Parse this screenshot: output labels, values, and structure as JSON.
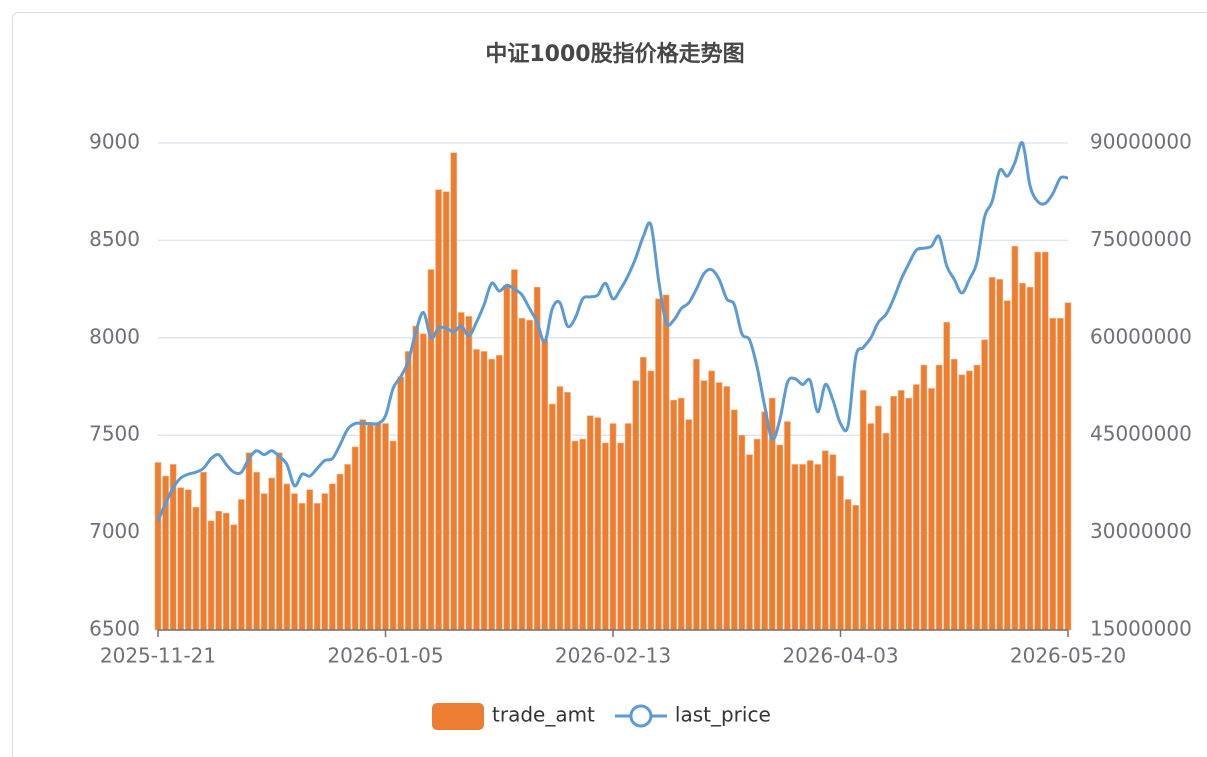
{
  "chart_data": {
    "type": "bar-line",
    "title": "中证1000股指价格走势图",
    "categories": [
      "2025-11-21",
      null,
      null,
      null,
      null,
      null,
      null,
      null,
      null,
      null,
      null,
      null,
      null,
      null,
      null,
      null,
      null,
      null,
      null,
      null,
      null,
      null,
      null,
      null,
      null,
      null,
      null,
      null,
      null,
      null,
      "2026-01-05",
      null,
      null,
      null,
      null,
      null,
      null,
      null,
      null,
      null,
      null,
      null,
      null,
      null,
      null,
      null,
      null,
      null,
      null,
      null,
      null,
      null,
      null,
      null,
      null,
      null,
      null,
      null,
      null,
      null,
      "2026-02-13",
      null,
      null,
      null,
      null,
      null,
      null,
      null,
      null,
      null,
      null,
      null,
      null,
      null,
      null,
      null,
      null,
      null,
      null,
      null,
      null,
      null,
      null,
      null,
      null,
      null,
      null,
      null,
      null,
      null,
      "2026-04-03",
      null,
      null,
      null,
      null,
      null,
      null,
      null,
      null,
      null,
      null,
      null,
      null,
      null,
      null,
      null,
      null,
      null,
      null,
      null,
      null,
      null,
      null,
      null,
      null,
      null,
      null,
      null,
      null,
      null,
      "2026-05-20"
    ],
    "series": [
      {
        "name": "trade_amt",
        "type": "bar",
        "axis": "y2",
        "color": "#ed7d31",
        "values": [
          40800000,
          38700000,
          40500000,
          36900000,
          36600000,
          33900000,
          39300000,
          31800000,
          33300000,
          33000000,
          31200000,
          35100000,
          42300000,
          39300000,
          36000000,
          38400000,
          42300000,
          37500000,
          36000000,
          34500000,
          36600000,
          34500000,
          36000000,
          37500000,
          39000000,
          40500000,
          43200000,
          47400000,
          46800000,
          46800000,
          46800000,
          44100000,
          54000000,
          57900000,
          61800000,
          60600000,
          70500000,
          82800000,
          82500000,
          88500000,
          63900000,
          63300000,
          58200000,
          57900000,
          56700000,
          57300000,
          68100000,
          70500000,
          63000000,
          62700000,
          67800000,
          59700000,
          49800000,
          52500000,
          51600000,
          44100000,
          44400000,
          48000000,
          47700000,
          43800000,
          46800000,
          43800000,
          46800000,
          53400000,
          57000000,
          54900000,
          66000000,
          66600000,
          50400000,
          50700000,
          47400000,
          56700000,
          53400000,
          54900000,
          53100000,
          52500000,
          48900000,
          45000000,
          42000000,
          44400000,
          48600000,
          50700000,
          43500000,
          47100000,
          40500000,
          40500000,
          41100000,
          40500000,
          42600000,
          42000000,
          38700000,
          35100000,
          34200000,
          51900000,
          46800000,
          49500000,
          45300000,
          51000000,
          51900000,
          50700000,
          52800000,
          55800000,
          52200000,
          55800000,
          62400000,
          56700000,
          54300000,
          54900000,
          55800000,
          59700000,
          69300000,
          69000000,
          65700000,
          74100000,
          68400000,
          67800000,
          73200000,
          73200000,
          63000000,
          63000000,
          65400000
        ]
      },
      {
        "name": "last_price",
        "type": "line",
        "axis": "y",
        "color": "#5b9bd5",
        "values": [
          7060,
          7150,
          7230,
          7280,
          7300,
          7310,
          7330,
          7380,
          7400,
          7350,
          7310,
          7310,
          7380,
          7420,
          7400,
          7420,
          7390,
          7350,
          7240,
          7300,
          7290,
          7330,
          7370,
          7380,
          7450,
          7530,
          7560,
          7560,
          7560,
          7560,
          7600,
          7740,
          7800,
          7880,
          8030,
          8130,
          8000,
          8050,
          8050,
          8030,
          8060,
          8010,
          8080,
          8170,
          8280,
          8240,
          8270,
          8250,
          8220,
          8150,
          8080,
          7980,
          8150,
          8180,
          8060,
          8100,
          8200,
          8210,
          8220,
          8280,
          8200,
          8250,
          8320,
          8410,
          8520,
          8580,
          8300,
          8080,
          8090,
          8150,
          8180,
          8250,
          8330,
          8350,
          8300,
          8200,
          8170,
          8020,
          7990,
          7850,
          7650,
          7480,
          7580,
          7770,
          7790,
          7760,
          7780,
          7620,
          7760,
          7680,
          7560,
          7550,
          7900,
          7950,
          8000,
          8080,
          8120,
          8200,
          8300,
          8380,
          8450,
          8460,
          8470,
          8520,
          8370,
          8300,
          8230,
          8300,
          8390,
          8620,
          8700,
          8860,
          8830,
          8900,
          9000,
          8780,
          8700,
          8690,
          8740,
          8820,
          8820
        ]
      }
    ],
    "ylim": [
      6500,
      9000
    ],
    "yticks": [
      6500,
      7000,
      7500,
      8000,
      8500,
      9000
    ],
    "y2lim": [
      15000000,
      90000000
    ],
    "y2ticks": [
      15000000,
      30000000,
      45000000,
      60000000,
      75000000,
      90000000
    ],
    "grid": true,
    "legend": "bottom"
  }
}
